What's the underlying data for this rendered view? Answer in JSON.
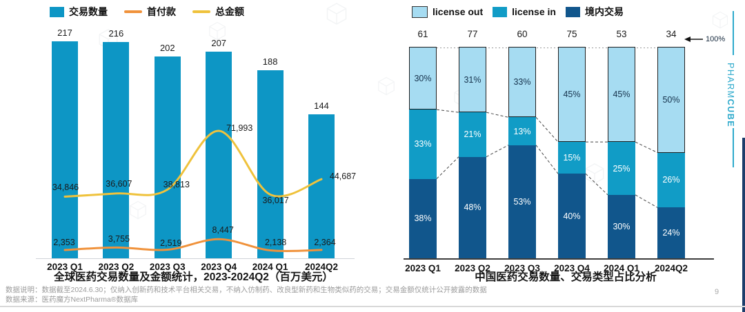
{
  "page": {
    "page_number": "9",
    "brand_regular": "PHARM",
    "brand_bold": "CUBE",
    "footnote_line1": "数据说明：数据截至2024.6.30；仅纳入创新药和技术平台相关交易，不纳入仿制药、改良型新药和生物类似药的交易；交易金额仅统计公开披露的数据",
    "footnote_line2": "数据来源：医药魔方NextPharma®数据库"
  },
  "colors": {
    "bar_teal": "#0D96C5",
    "license_out_blue": "#A6DCF2",
    "license_in_teal": "#119CC6",
    "domestic_navy": "#11568C",
    "upfront_orange": "#F0923B",
    "total_yellow": "#EFC23C",
    "brand_teal": "#2BA9CB"
  },
  "chart_data": [
    {
      "type": "bar+line",
      "title": "全球医药交易数量及金额统计，2023-2024Q2（百万美元）",
      "categories": [
        "2023 Q1",
        "2023 Q2",
        "2023 Q3",
        "2023 Q4",
        "2024 Q1",
        "2024Q2"
      ],
      "bar_series": {
        "name": "交易数量",
        "color": "#0D96C5",
        "values": [
          217,
          216,
          202,
          207,
          188,
          144
        ]
      },
      "line_series": [
        {
          "name": "首付款",
          "color": "#F0923B",
          "values": [
            2353,
            3755,
            2519,
            8447,
            2138,
            2364
          ],
          "labels": [
            "2,353",
            "3,755",
            "2,519",
            "8,447",
            "2,138",
            "2,364"
          ]
        },
        {
          "name": "总金额",
          "color": "#EFC23C",
          "values": [
            34846,
            36607,
            38813,
            71993,
            36017,
            44687
          ],
          "labels": [
            "34,846",
            "36,607",
            "38,813",
            "71,993",
            "36,017",
            "44,687"
          ]
        }
      ],
      "legend_position": "top",
      "unit": "百万美元"
    },
    {
      "type": "stacked-bar-100",
      "title": "中国医药交易数量、交易类型占比分析",
      "categories": [
        "2023 Q1",
        "2023 Q2",
        "2023 Q3",
        "2023 Q4",
        "2024 Q1",
        "2024Q2"
      ],
      "totals": [
        61,
        77,
        60,
        75,
        53,
        34
      ],
      "series": [
        {
          "name": "license out",
          "color": "#A6DCF2",
          "values": [
            30,
            31,
            33,
            45,
            45,
            50
          ]
        },
        {
          "name": "license in",
          "color": "#119CC6",
          "values": [
            33,
            21,
            13,
            15,
            25,
            26
          ]
        },
        {
          "name": "境内交易",
          "color": "#11568C",
          "values": [
            38,
            48,
            53,
            40,
            30,
            24
          ]
        }
      ],
      "unit": "%",
      "right_axis_annotation": "100%",
      "legend_position": "top"
    }
  ]
}
